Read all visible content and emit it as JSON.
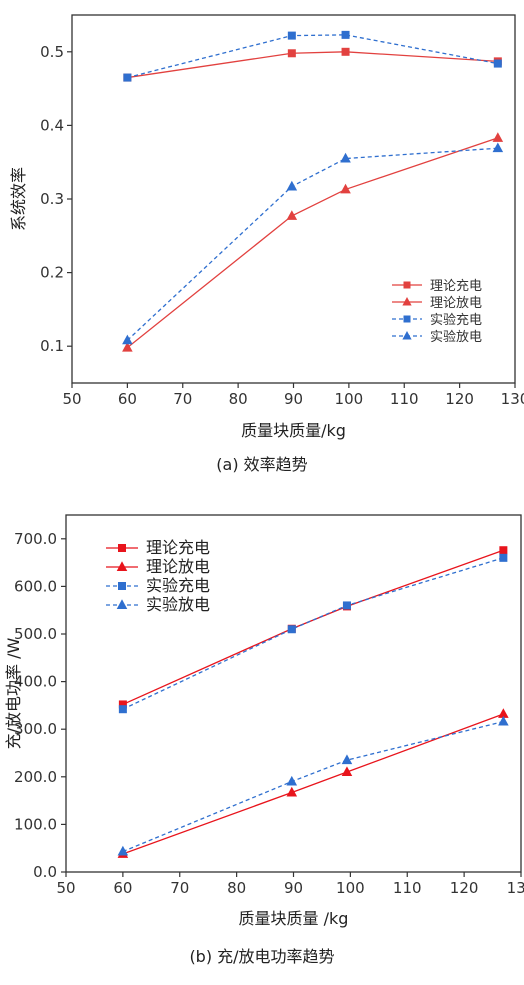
{
  "figures": [
    {
      "id": "a",
      "caption": "(a) 效率趋势",
      "legend_position": "bottom-right",
      "chart_data": {
        "type": "line",
        "xlabel": "质量块质量/kg",
        "ylabel": "系统效率",
        "xlim": [
          50,
          130
        ],
        "ylim": [
          0.05,
          0.55
        ],
        "xticks": [
          50,
          60,
          70,
          80,
          90,
          100,
          110,
          120,
          130
        ],
        "yticks": [
          0.1,
          0.2,
          0.3,
          0.4,
          0.5
        ],
        "grid": false,
        "series": [
          {
            "name": "理论充电",
            "style": "solid",
            "marker": "square",
            "color": "#e2413f",
            "x": [
              60,
              89.7,
              99.4,
              126.9
            ],
            "y": [
              0.465,
              0.498,
              0.5,
              0.487
            ]
          },
          {
            "name": "理论放电",
            "style": "solid",
            "marker": "triangle",
            "color": "#e2413f",
            "x": [
              60,
              89.7,
              99.4,
              126.9
            ],
            "y": [
              0.098,
              0.277,
              0.313,
              0.383
            ]
          },
          {
            "name": "实验充电",
            "style": "dashed",
            "marker": "square",
            "color": "#2f6fcf",
            "x": [
              60,
              89.7,
              99.4,
              126.9
            ],
            "y": [
              0.465,
              0.522,
              0.523,
              0.484
            ]
          },
          {
            "name": "实验放电",
            "style": "dashed",
            "marker": "triangle",
            "color": "#2f6fcf",
            "x": [
              60,
              89.7,
              99.4,
              126.9
            ],
            "y": [
              0.108,
              0.317,
              0.355,
              0.369
            ]
          }
        ]
      }
    },
    {
      "id": "b",
      "caption": "(b) 充/放电功率趋势",
      "legend_position": "top-left",
      "chart_data": {
        "type": "line",
        "xlabel": "质量块质量 /kg",
        "ylabel": "充/放电功率 /W",
        "xlim": [
          50,
          130
        ],
        "ylim": [
          0,
          750
        ],
        "xticks": [
          50,
          60,
          70,
          80,
          90,
          100,
          110,
          120,
          130
        ],
        "yticks": [
          0,
          100,
          200,
          300,
          400,
          500,
          600,
          700
        ],
        "grid": false,
        "series": [
          {
            "name": "理论充电",
            "style": "solid",
            "marker": "square",
            "color": "#e8141c",
            "x": [
              60,
              89.7,
              99.4,
              126.9
            ],
            "y": [
              352,
              511,
              558,
              676
            ]
          },
          {
            "name": "理论放电",
            "style": "solid",
            "marker": "triangle",
            "color": "#e8141c",
            "x": [
              60,
              89.7,
              99.4,
              126.9
            ],
            "y": [
              38,
              167,
              210,
              332
            ]
          },
          {
            "name": "实验充电",
            "style": "dashed",
            "marker": "square",
            "color": "#2f6fcf",
            "x": [
              60,
              89.7,
              99.4,
              126.9
            ],
            "y": [
              342,
              510,
              560,
              660
            ]
          },
          {
            "name": "实验放电",
            "style": "dashed",
            "marker": "triangle",
            "color": "#2f6fcf",
            "x": [
              60,
              89.7,
              99.4,
              126.9
            ],
            "y": [
              43,
              190,
              235,
              316
            ]
          }
        ]
      }
    }
  ]
}
